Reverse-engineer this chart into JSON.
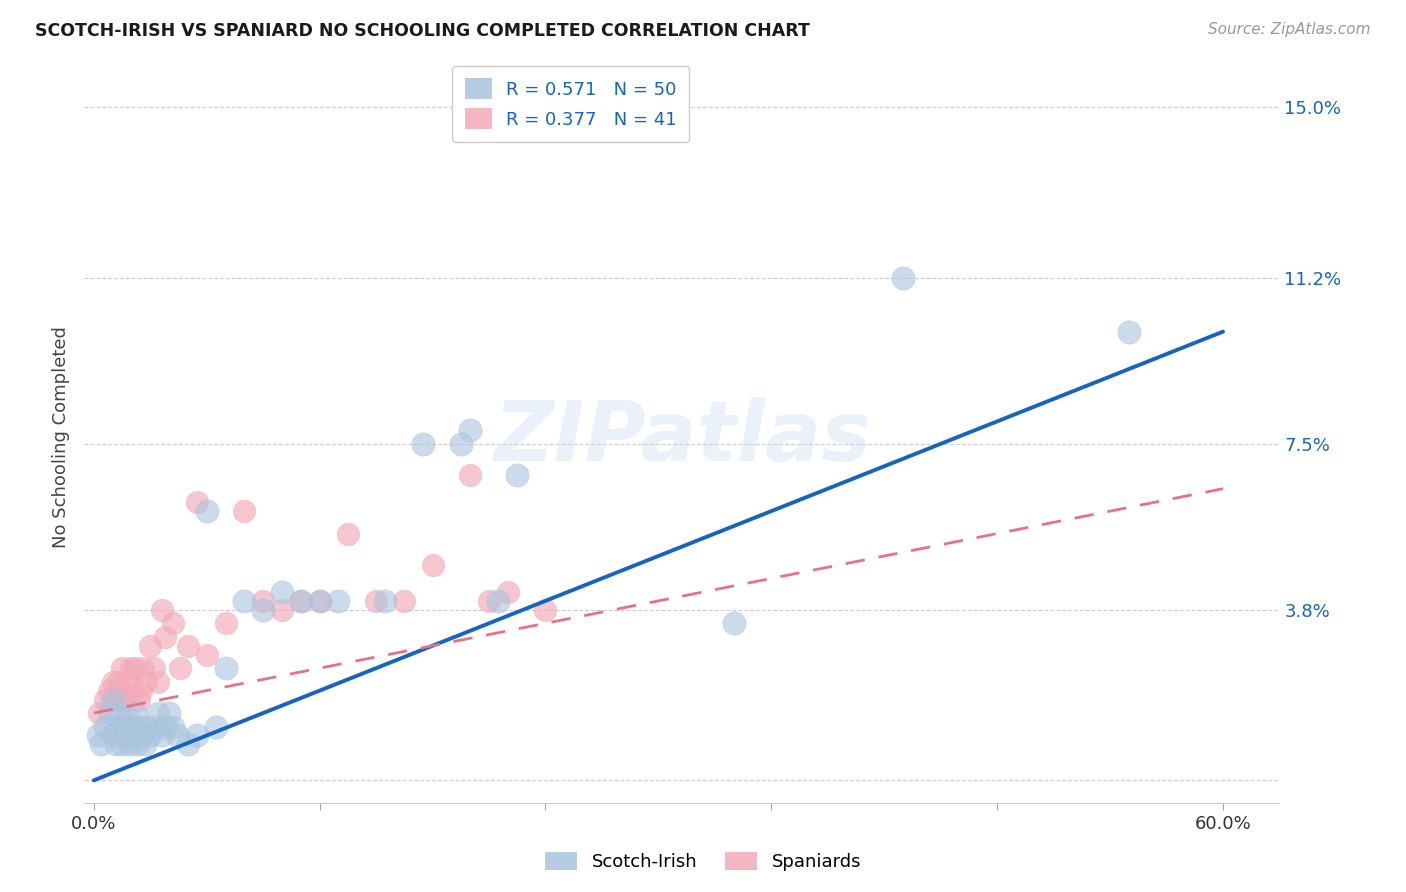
{
  "title": "SCOTCH-IRISH VS SPANIARD NO SCHOOLING COMPLETED CORRELATION CHART",
  "source": "Source: ZipAtlas.com",
  "ylabel": "No Schooling Completed",
  "ytick_vals": [
    0.0,
    0.038,
    0.075,
    0.112,
    0.15
  ],
  "ytick_labels": [
    "",
    "3.8%",
    "7.5%",
    "11.2%",
    "15.0%"
  ],
  "xtick_vals": [
    0.0,
    0.12,
    0.24,
    0.36,
    0.48,
    0.6
  ],
  "xtick_labels": [
    "0.0%",
    "",
    "",
    "",
    "",
    "60.0%"
  ],
  "xlim": [
    -0.005,
    0.63
  ],
  "ylim": [
    -0.005,
    0.158
  ],
  "legend_r1": "R = 0.571",
  "legend_n1": "N = 50",
  "legend_r2": "R = 0.377",
  "legend_n2": "N = 41",
  "blue_scatter_color": "#aac4de",
  "pink_scatter_color": "#f2aab8",
  "blue_line_color": "#1565c0",
  "pink_line_color": "#e8708a",
  "watermark": "ZIPatlas",
  "blue_line_x0": 0.0,
  "blue_line_y0": 0.0,
  "blue_line_x1": 0.6,
  "blue_line_y1": 0.1,
  "pink_line_x0": 0.0,
  "pink_line_y0": 0.015,
  "pink_line_x1": 0.6,
  "pink_line_y1": 0.065,
  "scotch_irish_x": [
    0.002,
    0.004,
    0.006,
    0.008,
    0.01,
    0.01,
    0.012,
    0.013,
    0.014,
    0.015,
    0.016,
    0.017,
    0.018,
    0.019,
    0.02,
    0.021,
    0.022,
    0.023,
    0.024,
    0.025,
    0.027,
    0.028,
    0.03,
    0.032,
    0.034,
    0.036,
    0.038,
    0.04,
    0.042,
    0.044,
    0.05,
    0.055,
    0.06,
    0.065,
    0.07,
    0.08,
    0.09,
    0.1,
    0.11,
    0.12,
    0.13,
    0.155,
    0.175,
    0.195,
    0.2,
    0.215,
    0.225,
    0.34,
    0.43,
    0.55
  ],
  "scotch_irish_y": [
    0.01,
    0.008,
    0.012,
    0.015,
    0.01,
    0.018,
    0.008,
    0.012,
    0.015,
    0.008,
    0.012,
    0.01,
    0.014,
    0.008,
    0.012,
    0.01,
    0.015,
    0.008,
    0.012,
    0.01,
    0.008,
    0.012,
    0.01,
    0.012,
    0.015,
    0.01,
    0.012,
    0.015,
    0.012,
    0.01,
    0.008,
    0.01,
    0.06,
    0.012,
    0.025,
    0.04,
    0.038,
    0.042,
    0.04,
    0.04,
    0.04,
    0.04,
    0.075,
    0.075,
    0.078,
    0.04,
    0.068,
    0.035,
    0.112,
    0.1
  ],
  "spaniards_x": [
    0.003,
    0.006,
    0.008,
    0.01,
    0.012,
    0.013,
    0.014,
    0.015,
    0.016,
    0.018,
    0.02,
    0.021,
    0.022,
    0.024,
    0.025,
    0.026,
    0.028,
    0.03,
    0.032,
    0.034,
    0.036,
    0.038,
    0.042,
    0.046,
    0.05,
    0.055,
    0.06,
    0.07,
    0.08,
    0.09,
    0.1,
    0.11,
    0.12,
    0.135,
    0.15,
    0.165,
    0.18,
    0.2,
    0.21,
    0.22,
    0.24
  ],
  "spaniards_y": [
    0.015,
    0.018,
    0.02,
    0.022,
    0.018,
    0.022,
    0.02,
    0.025,
    0.018,
    0.022,
    0.025,
    0.02,
    0.025,
    0.018,
    0.02,
    0.025,
    0.022,
    0.03,
    0.025,
    0.022,
    0.038,
    0.032,
    0.035,
    0.025,
    0.03,
    0.062,
    0.028,
    0.035,
    0.06,
    0.04,
    0.038,
    0.04,
    0.04,
    0.055,
    0.04,
    0.04,
    0.048,
    0.068,
    0.04,
    0.042,
    0.038
  ]
}
